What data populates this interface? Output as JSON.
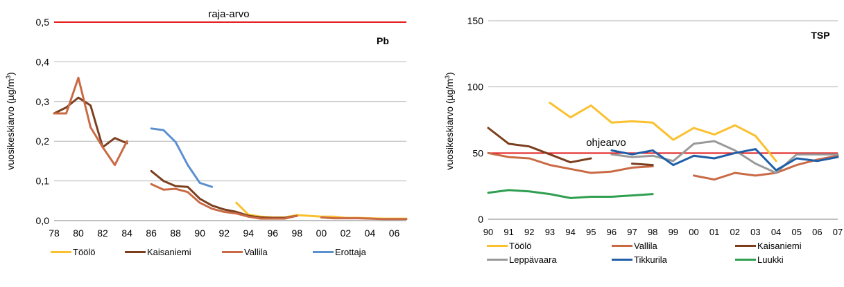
{
  "charts": [
    {
      "type": "line",
      "panel_label": "Pb",
      "ylabel_main": "vuosikeskiarvo (µg/m",
      "ylabel_sup": "3",
      "ylabel_end": ")",
      "ylim": [
        0,
        0.5
      ],
      "yticks": [
        0,
        0.1,
        0.2,
        0.3,
        0.4,
        0.5
      ],
      "ytick_labels": [
        "0,0",
        "0,1",
        "0,2",
        "0,3",
        "0,4",
        "0,5"
      ],
      "xlim": [
        1978,
        2007
      ],
      "xticks": [
        1978,
        1980,
        1982,
        1984,
        1986,
        1988,
        1990,
        1992,
        1994,
        1996,
        1998,
        2000,
        2002,
        2004,
        2006
      ],
      "xtick_labels": [
        "78",
        "80",
        "82",
        "84",
        "86",
        "88",
        "90",
        "92",
        "94",
        "96",
        "98",
        "00",
        "02",
        "04",
        "06"
      ],
      "grid": true,
      "legend_position": "bottom",
      "reference_line": {
        "label": "raja-arvo",
        "value": 0.5,
        "color": "#e31a1c"
      },
      "series": [
        {
          "name": "Töölö",
          "color": "#fbc02d",
          "segments": [
            [
              [
                1993,
                0.045
              ],
              [
                1994,
                0.015
              ],
              [
                1995,
                0.01
              ],
              [
                1996,
                0.008
              ],
              [
                1997,
                0.008
              ],
              [
                1998,
                0.014
              ],
              [
                1999,
                0.012
              ],
              [
                2000,
                0.01
              ],
              [
                2001,
                0.01
              ],
              [
                2002,
                0.007
              ],
              [
                2003,
                0.007
              ],
              [
                2004,
                0.006
              ],
              [
                2005,
                0.005
              ],
              [
                2006,
                0.005
              ],
              [
                2007,
                0.005
              ]
            ]
          ]
        },
        {
          "name": "Kaisaniemi",
          "color": "#7b3f1e",
          "segments": [
            [
              [
                1978,
                0.27
              ],
              [
                1979,
                0.285
              ],
              [
                1980,
                0.31
              ],
              [
                1981,
                0.29
              ],
              [
                1982,
                0.185
              ],
              [
                1983,
                0.208
              ],
              [
                1984,
                0.195
              ]
            ],
            [
              [
                1986,
                0.125
              ],
              [
                1987,
                0.1
              ],
              [
                1988,
                0.087
              ],
              [
                1989,
                0.085
              ],
              [
                1990,
                0.055
              ],
              [
                1991,
                0.038
              ],
              [
                1992,
                0.028
              ],
              [
                1993,
                0.022
              ],
              [
                1994,
                0.012
              ],
              [
                1995,
                0.008
              ],
              [
                1996,
                0.007
              ],
              [
                1997,
                0.007
              ],
              [
                1998,
                0.012
              ]
            ]
          ]
        },
        {
          "name": "Vallila",
          "color": "#c96a45",
          "segments": [
            [
              [
                1978,
                0.27
              ],
              [
                1979,
                0.27
              ],
              [
                1980,
                0.36
              ],
              [
                1981,
                0.235
              ],
              [
                1982,
                0.185
              ],
              [
                1983,
                0.14
              ],
              [
                1984,
                0.2
              ]
            ],
            [
              [
                1986,
                0.092
              ],
              [
                1987,
                0.078
              ],
              [
                1988,
                0.08
              ],
              [
                1989,
                0.072
              ],
              [
                1990,
                0.045
              ],
              [
                1991,
                0.03
              ],
              [
                1992,
                0.022
              ],
              [
                1993,
                0.018
              ],
              [
                1994,
                0.01
              ],
              [
                1995,
                0.005
              ],
              [
                1996,
                0.005
              ],
              [
                1997,
                0.005
              ],
              [
                1998,
                0.012
              ]
            ],
            [
              [
                2000,
                0.008
              ],
              [
                2001,
                0.006
              ],
              [
                2002,
                0.006
              ],
              [
                2003,
                0.006
              ],
              [
                2004,
                0.005
              ],
              [
                2005,
                0.004
              ],
              [
                2006,
                0.004
              ],
              [
                2007,
                0.004
              ]
            ]
          ]
        },
        {
          "name": "Erottaja",
          "color": "#5b8fd0",
          "segments": [
            [
              [
                1986,
                0.232
              ],
              [
                1987,
                0.228
              ],
              [
                1988,
                0.198
              ],
              [
                1989,
                0.14
              ],
              [
                1990,
                0.095
              ],
              [
                1991,
                0.085
              ]
            ]
          ]
        }
      ]
    },
    {
      "type": "line",
      "panel_label": "TSP",
      "ylabel_main": "vuosikeskiarvo (µg/m",
      "ylabel_sup": "3",
      "ylabel_end": ")",
      "ylim": [
        0,
        150
      ],
      "yticks": [
        0,
        50,
        100,
        150
      ],
      "ytick_labels": [
        "0",
        "50",
        "100",
        "150"
      ],
      "xlim": [
        1990,
        2007
      ],
      "xticks": [
        1990,
        1991,
        1992,
        1993,
        1994,
        1995,
        1996,
        1997,
        1998,
        1999,
        2000,
        2001,
        2002,
        2003,
        2004,
        2005,
        2006,
        2007
      ],
      "xtick_labels": [
        "90",
        "91",
        "92",
        "93",
        "94",
        "95",
        "96",
        "97",
        "98",
        "99",
        "00",
        "01",
        "02",
        "03",
        "04",
        "05",
        "06",
        "07"
      ],
      "grid": true,
      "legend_position": "bottom",
      "reference_line": {
        "label": "ohjearvo",
        "value": 50,
        "color": "#e31a1c"
      },
      "series": [
        {
          "name": "Töölö",
          "color": "#fbc02d",
          "segments": [
            [
              [
                1993,
                88
              ],
              [
                1994,
                77
              ],
              [
                1995,
                86
              ],
              [
                1996,
                73
              ],
              [
                1997,
                74
              ],
              [
                1998,
                73
              ],
              [
                1999,
                60
              ],
              [
                2000,
                69
              ],
              [
                2001,
                64
              ],
              [
                2002,
                71
              ],
              [
                2003,
                63
              ],
              [
                2004,
                44
              ]
            ]
          ]
        },
        {
          "name": "Vallila",
          "color": "#c96a45",
          "segments": [
            [
              [
                1990,
                50
              ],
              [
                1991,
                47
              ],
              [
                1992,
                46
              ],
              [
                1993,
                41
              ],
              [
                1994,
                38
              ],
              [
                1995,
                35
              ],
              [
                1996,
                36
              ],
              [
                1997,
                39
              ],
              [
                1998,
                40
              ]
            ],
            [
              [
                2000,
                33
              ],
              [
                2001,
                30
              ],
              [
                2002,
                35
              ],
              [
                2003,
                33
              ],
              [
                2004,
                35
              ],
              [
                2005,
                41
              ],
              [
                2006,
                45
              ],
              [
                2007,
                48
              ]
            ]
          ]
        },
        {
          "name": "Kaisaniemi",
          "color": "#7b3f1e",
          "segments": [
            [
              [
                1990,
                69
              ],
              [
                1991,
                57
              ],
              [
                1992,
                55
              ],
              [
                1993,
                49
              ],
              [
                1994,
                43
              ],
              [
                1995,
                46
              ]
            ],
            [
              [
                1997,
                42
              ],
              [
                1998,
                41
              ]
            ]
          ]
        },
        {
          "name": "Leppävaara",
          "color": "#999999",
          "segments": [
            [
              [
                1996,
                49
              ],
              [
                1997,
                47
              ],
              [
                1998,
                48
              ],
              [
                1999,
                44
              ],
              [
                2000,
                57
              ],
              [
                2001,
                59
              ],
              [
                2002,
                52
              ],
              [
                2003,
                42
              ],
              [
                2004,
                35
              ],
              [
                2005,
                49
              ],
              [
                2006,
                49
              ],
              [
                2007,
                49
              ]
            ]
          ]
        },
        {
          "name": "Tikkurila",
          "color": "#1f5fa8",
          "segments": [
            [
              [
                1996,
                52
              ],
              [
                1997,
                49
              ],
              [
                1998,
                52
              ],
              [
                1999,
                41
              ],
              [
                2000,
                48
              ],
              [
                2001,
                46
              ],
              [
                2002,
                50
              ],
              [
                2003,
                53
              ],
              [
                2004,
                37
              ],
              [
                2005,
                46
              ],
              [
                2006,
                44
              ],
              [
                2007,
                47
              ]
            ]
          ]
        },
        {
          "name": "Luukki",
          "color": "#2e9e4f",
          "segments": [
            [
              [
                1990,
                20
              ],
              [
                1991,
                22
              ],
              [
                1992,
                21
              ],
              [
                1993,
                19
              ],
              [
                1994,
                16
              ],
              [
                1995,
                17
              ],
              [
                1996,
                17
              ],
              [
                1997,
                18
              ],
              [
                1998,
                19
              ]
            ]
          ]
        }
      ]
    }
  ]
}
